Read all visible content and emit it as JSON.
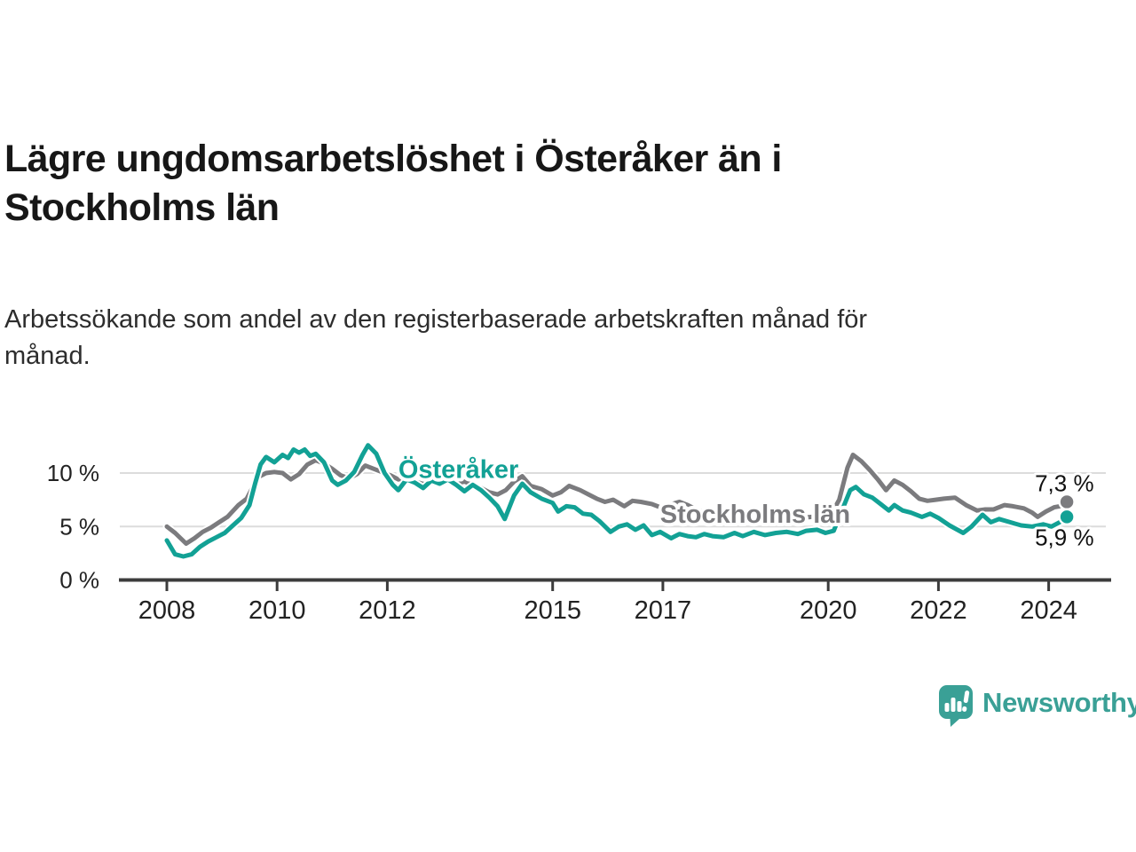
{
  "page": {
    "title_lines": [
      "Lägre ungdomsarbetslöshet i Österåker än i",
      "Stockholms län"
    ],
    "subtitle_lines": [
      "Arbetssökande som andel av den registerbaserade arbetskraften månad för",
      "månad."
    ]
  },
  "branding": {
    "logo_text": "Newsworthy",
    "logo_icon": "newsworthy-bubble-bar-chart-icon",
    "brand_color": "#3aa096"
  },
  "chart_data": {
    "type": "line",
    "unit": "%",
    "grid": "horizontal-light",
    "legend_position": "inline-labels",
    "xlim": [
      2008,
      2024.8
    ],
    "ylim": [
      0,
      13.5
    ],
    "x_ticks": [
      {
        "value": 2008,
        "label": "2008"
      },
      {
        "value": 2010,
        "label": "2010"
      },
      {
        "value": 2012,
        "label": "2012"
      },
      {
        "value": 2015,
        "label": "2015"
      },
      {
        "value": 2017,
        "label": "2017"
      },
      {
        "value": 2020,
        "label": "2020"
      },
      {
        "value": 2022,
        "label": "2022"
      },
      {
        "value": 2024,
        "label": "2024"
      }
    ],
    "y_ticks": [
      {
        "value": 0,
        "label": "0 %"
      },
      {
        "value": 5,
        "label": "5 %"
      },
      {
        "value": 10,
        "label": "10 %"
      }
    ],
    "series": [
      {
        "id": "stockholms-lan",
        "name": "Stockholms län",
        "color": "#7b7b7e",
        "end_label": "7,3 %",
        "end_label_position": "above",
        "label_anchor": {
          "x": 2016.95,
          "y": 5.35
        },
        "points": [
          [
            2008.0,
            5.0
          ],
          [
            2008.15,
            4.4
          ],
          [
            2008.35,
            3.4
          ],
          [
            2008.5,
            3.9
          ],
          [
            2008.65,
            4.5
          ],
          [
            2008.8,
            4.9
          ],
          [
            2008.95,
            5.4
          ],
          [
            2009.1,
            5.9
          ],
          [
            2009.3,
            7.0
          ],
          [
            2009.45,
            7.6
          ],
          [
            2009.55,
            8.6
          ],
          [
            2009.65,
            9.6
          ],
          [
            2009.8,
            10.0
          ],
          [
            2009.95,
            10.1
          ],
          [
            2010.1,
            10.0
          ],
          [
            2010.25,
            9.4
          ],
          [
            2010.4,
            9.9
          ],
          [
            2010.55,
            10.8
          ],
          [
            2010.7,
            11.2
          ],
          [
            2010.85,
            10.9
          ],
          [
            2011.0,
            10.4
          ],
          [
            2011.15,
            9.8
          ],
          [
            2011.3,
            9.5
          ],
          [
            2011.45,
            9.9
          ],
          [
            2011.6,
            10.7
          ],
          [
            2011.75,
            10.4
          ],
          [
            2011.9,
            10.1
          ],
          [
            2012.05,
            9.8
          ],
          [
            2012.2,
            9.4
          ],
          [
            2012.35,
            9.6
          ],
          [
            2012.5,
            9.2
          ],
          [
            2012.65,
            9.0
          ],
          [
            2012.8,
            9.3
          ],
          [
            2012.95,
            9.1
          ],
          [
            2013.1,
            9.3
          ],
          [
            2013.25,
            9.0
          ],
          [
            2013.4,
            9.2
          ],
          [
            2013.55,
            8.9
          ],
          [
            2013.7,
            8.6
          ],
          [
            2013.85,
            8.2
          ],
          [
            2014.0,
            8.0
          ],
          [
            2014.15,
            8.4
          ],
          [
            2014.3,
            9.2
          ],
          [
            2014.45,
            9.7
          ],
          [
            2014.6,
            8.8
          ],
          [
            2014.8,
            8.5
          ],
          [
            2015.0,
            7.9
          ],
          [
            2015.15,
            8.2
          ],
          [
            2015.3,
            8.8
          ],
          [
            2015.5,
            8.4
          ],
          [
            2015.65,
            8.0
          ],
          [
            2015.8,
            7.6
          ],
          [
            2015.95,
            7.3
          ],
          [
            2016.1,
            7.5
          ],
          [
            2016.3,
            6.9
          ],
          [
            2016.45,
            7.4
          ],
          [
            2016.6,
            7.3
          ],
          [
            2016.8,
            7.1
          ],
          [
            2016.95,
            6.8
          ],
          [
            2017.1,
            7.0
          ],
          [
            2017.3,
            7.3
          ],
          [
            2017.45,
            7.0
          ],
          [
            2017.6,
            6.6
          ],
          [
            2017.75,
            6.4
          ],
          [
            2017.9,
            6.2
          ],
          [
            2018.1,
            6.0
          ],
          [
            2018.3,
            6.1
          ],
          [
            2018.5,
            5.9
          ],
          [
            2018.7,
            5.8
          ],
          [
            2018.9,
            5.9
          ],
          [
            2019.1,
            5.8
          ],
          [
            2019.3,
            5.9
          ],
          [
            2019.5,
            5.8
          ],
          [
            2019.7,
            5.9
          ],
          [
            2019.9,
            6.0
          ],
          [
            2020.05,
            6.1
          ],
          [
            2020.2,
            7.5
          ],
          [
            2020.35,
            10.5
          ],
          [
            2020.45,
            11.7
          ],
          [
            2020.6,
            11.1
          ],
          [
            2020.75,
            10.3
          ],
          [
            2020.9,
            9.4
          ],
          [
            2021.05,
            8.4
          ],
          [
            2021.2,
            9.3
          ],
          [
            2021.35,
            8.9
          ],
          [
            2021.5,
            8.3
          ],
          [
            2021.65,
            7.6
          ],
          [
            2021.8,
            7.4
          ],
          [
            2021.95,
            7.5
          ],
          [
            2022.1,
            7.6
          ],
          [
            2022.3,
            7.7
          ],
          [
            2022.5,
            7.0
          ],
          [
            2022.7,
            6.5
          ],
          [
            2022.85,
            6.6
          ],
          [
            2023.0,
            6.6
          ],
          [
            2023.2,
            7.0
          ],
          [
            2023.35,
            6.9
          ],
          [
            2023.55,
            6.7
          ],
          [
            2023.7,
            6.3
          ],
          [
            2023.8,
            5.9
          ],
          [
            2023.95,
            6.4
          ],
          [
            2024.1,
            6.8
          ],
          [
            2024.2,
            6.9
          ],
          [
            2024.33,
            7.3
          ]
        ]
      },
      {
        "id": "osteraker",
        "name": "Österåker",
        "color": "#12a195",
        "end_label": "5,9 %",
        "end_label_position": "below",
        "label_anchor": {
          "x": 2012.2,
          "y": 9.55
        },
        "points": [
          [
            2008.0,
            3.7
          ],
          [
            2008.15,
            2.4
          ],
          [
            2008.3,
            2.2
          ],
          [
            2008.45,
            2.4
          ],
          [
            2008.6,
            3.1
          ],
          [
            2008.75,
            3.6
          ],
          [
            2008.9,
            4.0
          ],
          [
            2009.05,
            4.4
          ],
          [
            2009.2,
            5.1
          ],
          [
            2009.35,
            5.8
          ],
          [
            2009.5,
            7.0
          ],
          [
            2009.6,
            9.0
          ],
          [
            2009.7,
            10.8
          ],
          [
            2009.8,
            11.5
          ],
          [
            2009.95,
            11.0
          ],
          [
            2010.1,
            11.7
          ],
          [
            2010.2,
            11.4
          ],
          [
            2010.3,
            12.2
          ],
          [
            2010.4,
            11.9
          ],
          [
            2010.5,
            12.2
          ],
          [
            2010.6,
            11.6
          ],
          [
            2010.7,
            11.8
          ],
          [
            2010.85,
            11.0
          ],
          [
            2011.0,
            9.3
          ],
          [
            2011.1,
            8.9
          ],
          [
            2011.25,
            9.3
          ],
          [
            2011.4,
            10.1
          ],
          [
            2011.55,
            11.7
          ],
          [
            2011.65,
            12.6
          ],
          [
            2011.8,
            11.8
          ],
          [
            2011.95,
            10.0
          ],
          [
            2012.1,
            8.9
          ],
          [
            2012.2,
            8.4
          ],
          [
            2012.35,
            9.4
          ],
          [
            2012.5,
            9.1
          ],
          [
            2012.65,
            8.6
          ],
          [
            2012.8,
            9.3
          ],
          [
            2012.95,
            9.0
          ],
          [
            2013.1,
            9.4
          ],
          [
            2013.25,
            8.9
          ],
          [
            2013.4,
            8.3
          ],
          [
            2013.55,
            8.9
          ],
          [
            2013.7,
            8.4
          ],
          [
            2013.85,
            7.7
          ],
          [
            2014.0,
            6.9
          ],
          [
            2014.13,
            5.7
          ],
          [
            2014.3,
            7.9
          ],
          [
            2014.45,
            9.0
          ],
          [
            2014.6,
            8.2
          ],
          [
            2014.8,
            7.6
          ],
          [
            2015.0,
            7.2
          ],
          [
            2015.1,
            6.4
          ],
          [
            2015.25,
            6.9
          ],
          [
            2015.4,
            6.8
          ],
          [
            2015.55,
            6.2
          ],
          [
            2015.7,
            6.1
          ],
          [
            2015.85,
            5.5
          ],
          [
            2016.05,
            4.5
          ],
          [
            2016.2,
            5.0
          ],
          [
            2016.35,
            5.2
          ],
          [
            2016.5,
            4.7
          ],
          [
            2016.65,
            5.1
          ],
          [
            2016.8,
            4.2
          ],
          [
            2016.95,
            4.5
          ],
          [
            2017.15,
            3.9
          ],
          [
            2017.3,
            4.3
          ],
          [
            2017.45,
            4.1
          ],
          [
            2017.6,
            4.0
          ],
          [
            2017.75,
            4.3
          ],
          [
            2017.9,
            4.1
          ],
          [
            2018.1,
            4.0
          ],
          [
            2018.3,
            4.4
          ],
          [
            2018.45,
            4.1
          ],
          [
            2018.65,
            4.5
          ],
          [
            2018.85,
            4.2
          ],
          [
            2019.05,
            4.4
          ],
          [
            2019.25,
            4.5
          ],
          [
            2019.45,
            4.3
          ],
          [
            2019.6,
            4.6
          ],
          [
            2019.8,
            4.7
          ],
          [
            2019.95,
            4.4
          ],
          [
            2020.1,
            4.6
          ],
          [
            2020.25,
            6.5
          ],
          [
            2020.4,
            8.4
          ],
          [
            2020.5,
            8.7
          ],
          [
            2020.65,
            8.0
          ],
          [
            2020.8,
            7.7
          ],
          [
            2020.95,
            7.1
          ],
          [
            2021.1,
            6.5
          ],
          [
            2021.2,
            7.0
          ],
          [
            2021.35,
            6.5
          ],
          [
            2021.5,
            6.3
          ],
          [
            2021.7,
            5.9
          ],
          [
            2021.85,
            6.2
          ],
          [
            2022.0,
            5.8
          ],
          [
            2022.2,
            5.1
          ],
          [
            2022.45,
            4.4
          ],
          [
            2022.6,
            5.0
          ],
          [
            2022.8,
            6.1
          ],
          [
            2022.95,
            5.4
          ],
          [
            2023.1,
            5.7
          ],
          [
            2023.3,
            5.4
          ],
          [
            2023.5,
            5.1
          ],
          [
            2023.7,
            5.0
          ],
          [
            2023.9,
            5.2
          ],
          [
            2024.05,
            5.0
          ],
          [
            2024.2,
            5.4
          ],
          [
            2024.33,
            5.9
          ]
        ]
      }
    ]
  }
}
